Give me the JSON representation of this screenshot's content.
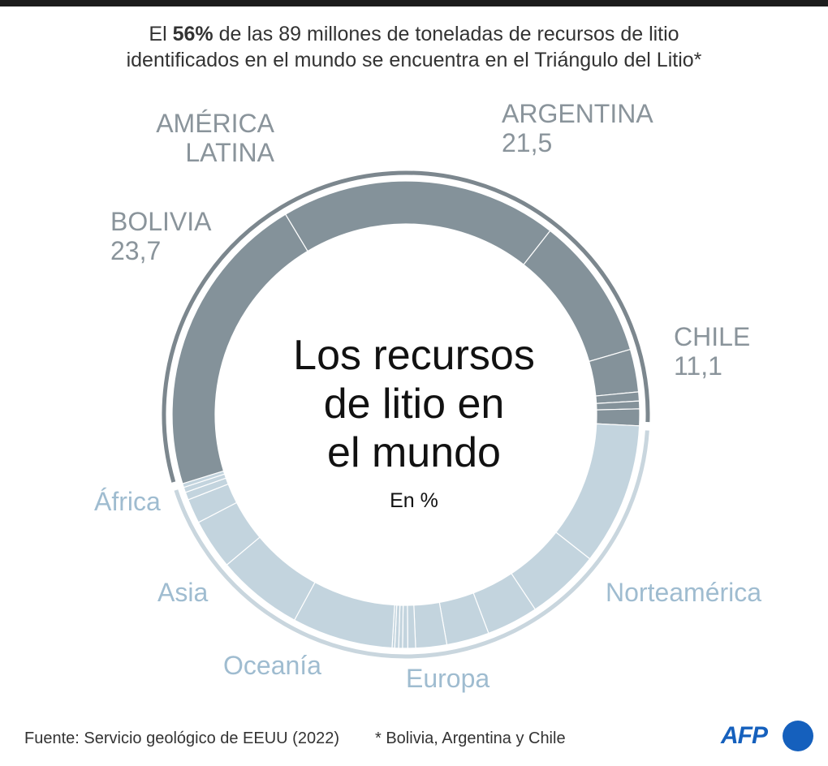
{
  "subtitle": {
    "pre": "El ",
    "bold": "56%",
    "line1_rest": " de las 89 millones de toneladas de recursos de litio",
    "line2": "identificados en el mundo se encuentra en el Triángulo del Litio*"
  },
  "center": {
    "title_line1": "Los recursos",
    "title_line2": "de litio en",
    "title_line3": "el mundo",
    "unit": "En %"
  },
  "labels": {
    "latam_line1": "AMÉRICA",
    "latam_line2": "LATINA",
    "argentina_name": "ARGENTINA",
    "argentina_value": "21,5",
    "bolivia_name": "BOLIVIA",
    "bolivia_value": "23,7",
    "chile_name": "CHILE",
    "chile_value": "11,1",
    "africa": "África",
    "asia": "Asia",
    "oceania": "Oceanía",
    "europa": "Europa",
    "norteamerica": "Norteamérica"
  },
  "footer": {
    "source": "Fuente: Servicio geológico de EEUU (2022)",
    "note": "* Bolivia, Argentina y Chile",
    "logo": "AFP"
  },
  "colors": {
    "latam": "#84929a",
    "others": "#c3d4de",
    "latam_bracket": "#7c878e",
    "others_bracket": "#c9d6de",
    "dark_label": "#8a949b",
    "light_label": "#9fbcd0",
    "brand": "#1560bd"
  },
  "chart_data": {
    "type": "donut",
    "unit": "%",
    "series": [
      {
        "name": "Argentina",
        "value": 21.5,
        "group": "América Latina"
      },
      {
        "name": "Chile",
        "value": 11.1,
        "group": "América Latina"
      },
      {
        "value": 3.3,
        "group": "América Latina"
      },
      {
        "value": 0.7,
        "group": "América Latina"
      },
      {
        "value": 0.6,
        "group": "América Latina"
      },
      {
        "value": 1.3,
        "group": "América Latina"
      },
      {
        "value": 11.0,
        "group": "Norteamérica"
      },
      {
        "value": 5.7,
        "group": "Norteamérica"
      },
      {
        "value": 4.0,
        "group": "Europa"
      },
      {
        "value": 3.3,
        "group": "Europa"
      },
      {
        "value": 2.4,
        "group": "Europa"
      },
      {
        "value": 0.6,
        "group": "Europa"
      },
      {
        "value": 0.4,
        "group": "Europa"
      },
      {
        "value": 0.3,
        "group": "Europa"
      },
      {
        "value": 0.3,
        "group": "Europa"
      },
      {
        "value": 0.2,
        "group": "Europa"
      },
      {
        "value": 7.8,
        "group": "Oceanía"
      },
      {
        "value": 6.7,
        "group": "Asia"
      },
      {
        "value": 3.9,
        "group": "Asia"
      },
      {
        "value": 1.9,
        "group": "África"
      },
      {
        "value": 0.6,
        "group": "África"
      },
      {
        "value": 0.4,
        "group": "África"
      },
      {
        "value": 0.3,
        "group": "África"
      },
      {
        "name": "Bolivia",
        "value": 23.7,
        "group": "América Latina"
      }
    ]
  }
}
